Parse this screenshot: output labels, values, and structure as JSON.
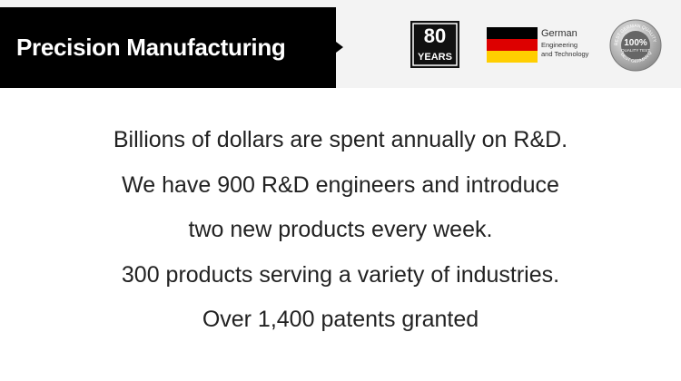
{
  "header": {
    "title": "Precision Manufacturing",
    "badges": {
      "years": {
        "number": "80",
        "label": "YEARS"
      },
      "german": {
        "lines": [
          "German",
          "Engineering",
          "and Technology"
        ]
      },
      "seal": {
        "top": "BEST GERMAN QUALITY",
        "center": "100%",
        "sub": "QUALITY TEST",
        "bottom": "BEST GERMAN QUALITY"
      }
    }
  },
  "body": {
    "lines": [
      "Billions of dollars are spent annually on R&D.",
      "We have 900 R&D engineers and introduce",
      "two new products every week.",
      "300 products serving a variety of industries.",
      "Over 1,400 patents granted"
    ]
  }
}
